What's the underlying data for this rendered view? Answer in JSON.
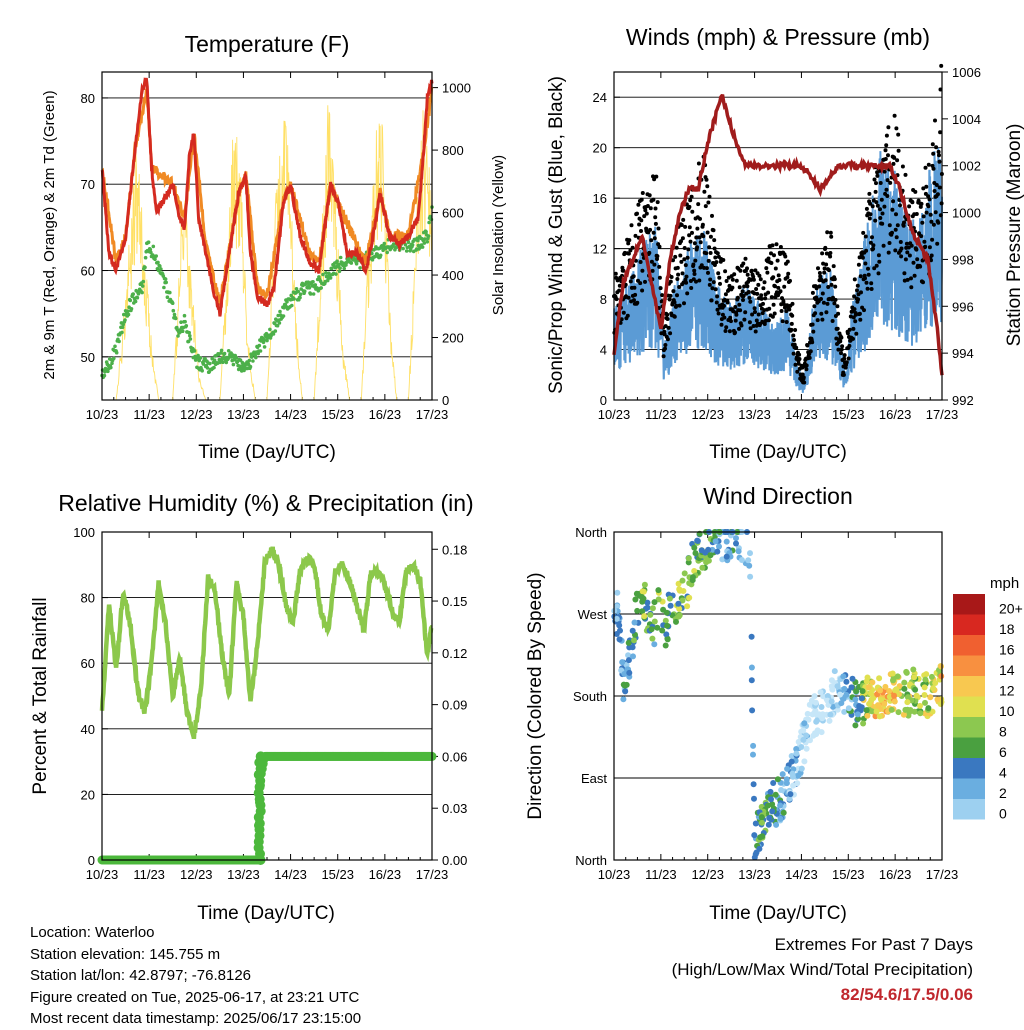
{
  "panels": {
    "temperature": {
      "title": "Temperature (F)",
      "ylabel_left": "2m & 9m T (Red, Orange) & 2m Td (Green)",
      "ylabel_right": "Solar Insolation (Yellow)",
      "xlabel": "Time (Day/UTC)"
    },
    "winds": {
      "title": "Winds (mph) & Pressure (mb)",
      "ylabel_left": "Sonic/Prop Wind & Gust (Blue, Black)",
      "ylabel_right": "Station Pressure (Maroon)",
      "xlabel": "Time (Day/UTC)"
    },
    "humidity": {
      "title": "Relative Humidity (%) & Precipitation (in)",
      "ylabel_left": "Percent & Total Rainfall",
      "xlabel": "Time (Day/UTC)"
    },
    "direction": {
      "title": "Wind Direction",
      "ylabel_left": "Direction (Colored By Speed)",
      "xlabel": "Time (Day/UTC)",
      "legend_title": "mph"
    }
  },
  "info": {
    "location": "Location: Waterloo",
    "elevation": "Station elevation: 145.755 m",
    "latlon": "Station lat/lon: 42.8797; -76.8126",
    "created": "Figure created on Tue, 2025-06-17, at 23:21 UTC",
    "timestamp": "Most recent data timestamp: 2025/06/17 23:15:00"
  },
  "extremes": {
    "line1": "Extremes For Past 7 Days",
    "line2": "(High/Low/Max Wind/Total Precipitation)",
    "values": "82/54.6/17.5/0.06"
  },
  "colors": {
    "temp_2m": "#d42a20",
    "temp_9m": "#f08a24",
    "dewpoint": "#4cb04a",
    "solar": "#ffe066",
    "wind": "#5b9bd5",
    "gust": "#000000",
    "pressure": "#a01c1c",
    "rh": "#8cc84b",
    "precip": "#4cb83c",
    "speed_scale": [
      "#c6e6f8",
      "#9dd0f0",
      "#6aaee0",
      "#3a78c0",
      "#4aa040",
      "#8cc850",
      "#e0e050",
      "#f8c850",
      "#f89040",
      "#f06030",
      "#d82820",
      "#a81818"
    ]
  },
  "chart_data": [
    {
      "type": "line",
      "title": "Temperature (F)",
      "xlabel": "Time (Day/UTC)",
      "ylabel": "2m & 9m T (Red, Orange) & 2m Td (Green)",
      "y2label": "Solar Insolation (Yellow)",
      "x_ticks": [
        "10/23",
        "11/23",
        "12/23",
        "13/23",
        "14/23",
        "15/23",
        "16/23",
        "17/23"
      ],
      "xlim": [
        0,
        7
      ],
      "ylim": [
        45,
        83
      ],
      "y_ticks": [
        50,
        60,
        70,
        80
      ],
      "y2lim": [
        0,
        1050
      ],
      "y2_ticks": [
        0,
        200,
        400,
        600,
        800,
        1000
      ],
      "grid": true,
      "series": [
        {
          "name": "2m T",
          "axis": "left",
          "x": [
            0,
            0.15,
            0.3,
            0.5,
            0.7,
            0.85,
            0.95,
            1.05,
            1.15,
            1.3,
            1.5,
            1.65,
            1.75,
            1.85,
            1.95,
            2.05,
            2.2,
            2.35,
            2.5,
            2.7,
            2.9,
            3.05,
            3.15,
            3.3,
            3.5,
            3.65,
            3.75,
            3.85,
            4.0,
            4.2,
            4.4,
            4.6,
            4.75,
            4.85,
            5.0,
            5.2,
            5.4,
            5.6,
            5.75,
            5.9,
            6.1,
            6.3,
            6.5,
            6.7,
            6.8,
            6.9,
            7.0
          ],
          "y": [
            72,
            62,
            60,
            64,
            74,
            81,
            82,
            72,
            67,
            68,
            70,
            66,
            65,
            73,
            76,
            66,
            62,
            58,
            55,
            62,
            69,
            71,
            62,
            57,
            56,
            58,
            63,
            68,
            70,
            64,
            61,
            60,
            66,
            70,
            68,
            62,
            62,
            60,
            64,
            69,
            64,
            63,
            64,
            66,
            72,
            80,
            82
          ]
        },
        {
          "name": "9m T",
          "axis": "left",
          "x": [
            0,
            0.3,
            0.5,
            0.7,
            0.95,
            1.05,
            1.5,
            1.75,
            1.95,
            2.2,
            2.5,
            2.9,
            3.05,
            3.3,
            3.5,
            3.85,
            4.0,
            4.4,
            4.6,
            4.85,
            5.0,
            5.4,
            5.6,
            5.9,
            6.1,
            6.5,
            6.8,
            7.0
          ],
          "y": [
            72,
            61,
            64,
            74,
            81,
            72,
            70,
            66,
            76,
            63,
            56,
            69,
            71,
            58,
            57,
            68,
            70,
            62,
            61,
            70,
            68,
            63,
            61,
            69,
            64,
            64,
            73,
            81
          ]
        },
        {
          "name": "2m Td",
          "axis": "left",
          "x": [
            0,
            0.15,
            0.3,
            0.5,
            0.7,
            0.85,
            0.95,
            1.1,
            1.3,
            1.5,
            1.6,
            1.75,
            1.85,
            1.95,
            2.1,
            2.3,
            2.5,
            2.75,
            2.9,
            3.1,
            3.3,
            3.5,
            3.7,
            3.9,
            4.1,
            4.3,
            4.5,
            4.7,
            4.9,
            5.1,
            5.3,
            5.5,
            5.7,
            5.9,
            6.1,
            6.3,
            6.5,
            6.7,
            6.9,
            7.0
          ],
          "y": [
            48,
            49,
            51,
            55,
            57,
            58,
            63,
            62,
            59,
            56,
            53,
            54,
            52,
            50,
            49,
            49,
            50,
            50,
            49,
            49,
            51,
            52,
            54,
            56,
            57,
            58,
            58,
            59,
            60,
            61,
            61,
            61,
            62,
            62,
            63,
            63,
            63,
            63,
            64,
            67
          ]
        },
        {
          "name": "Solar Insolation",
          "axis": "right",
          "x": [
            0.3,
            0.5,
            0.6,
            0.75,
            0.9,
            1.05,
            1.2,
            1.5,
            1.6,
            1.7,
            1.9,
            2.05,
            2.2,
            2.5,
            2.65,
            2.8,
            2.95,
            3.1,
            3.25,
            3.5,
            3.6,
            3.75,
            3.95,
            4.1,
            4.25,
            4.5,
            4.65,
            4.8,
            4.95,
            5.1,
            5.25,
            5.5,
            5.65,
            5.8,
            5.95,
            6.1,
            6.25,
            6.5,
            6.65,
            6.8,
            6.95
          ],
          "y": [
            0,
            350,
            600,
            850,
            500,
            200,
            0,
            0,
            300,
            800,
            400,
            100,
            0,
            0,
            450,
            950,
            700,
            200,
            0,
            0,
            400,
            850,
            950,
            300,
            0,
            0,
            500,
            1000,
            700,
            200,
            0,
            0,
            500,
            900,
            950,
            300,
            0,
            0,
            550,
            950,
            800
          ]
        }
      ]
    },
    {
      "type": "scatter",
      "title": "Winds (mph) & Pressure (mb)",
      "xlabel": "Time (Day/UTC)",
      "ylabel": "Sonic/Prop Wind & Gust (Blue, Black)",
      "y2label": "Station Pressure (Maroon)",
      "x_ticks": [
        "10/23",
        "11/23",
        "12/23",
        "13/23",
        "14/23",
        "15/23",
        "16/23",
        "17/23"
      ],
      "xlim": [
        0,
        7
      ],
      "ylim": [
        0,
        26
      ],
      "y_ticks": [
        0,
        4,
        8,
        12,
        16,
        20,
        24
      ],
      "y2lim": [
        992,
        1006
      ],
      "y2_ticks": [
        992,
        994,
        996,
        998,
        1000,
        1002,
        1004,
        1006
      ],
      "grid": true,
      "series": [
        {
          "name": "Wind",
          "axis": "left",
          "x": [
            0,
            0.3,
            0.6,
            0.9,
            1.05,
            1.3,
            1.6,
            1.9,
            2.2,
            2.5,
            2.8,
            3.1,
            3.4,
            3.7,
            3.9,
            4.05,
            4.3,
            4.6,
            4.9,
            5.1,
            5.4,
            5.7,
            6.0,
            6.3,
            6.6,
            6.9,
            7.0
          ],
          "y": [
            5,
            6,
            8,
            9,
            3,
            6,
            8,
            9,
            6,
            5,
            6,
            5,
            4,
            5,
            2,
            1,
            6,
            7,
            2,
            5,
            9,
            13,
            12,
            9,
            10,
            14,
            12
          ]
        },
        {
          "name": "Gust",
          "axis": "left",
          "x": [
            0,
            0.3,
            0.6,
            0.9,
            1.05,
            1.3,
            1.6,
            1.9,
            2.2,
            2.5,
            2.8,
            3.1,
            3.4,
            3.7,
            3.9,
            4.05,
            4.3,
            4.6,
            4.9,
            5.1,
            5.4,
            5.7,
            6.0,
            6.3,
            6.6,
            6.9,
            7.0
          ],
          "y": [
            9,
            12,
            15,
            17,
            6,
            12,
            15,
            18,
            11,
            9,
            11,
            9,
            12,
            11,
            4,
            2,
            10,
            13,
            3,
            8,
            14,
            19,
            21,
            15,
            16,
            21,
            25
          ]
        },
        {
          "name": "Station Pressure",
          "axis": "right",
          "x": [
            0,
            0.2,
            0.4,
            0.6,
            0.8,
            1.0,
            1.2,
            1.4,
            1.6,
            1.8,
            2.0,
            2.3,
            2.6,
            2.8,
            3.0,
            3.3,
            3.6,
            4.0,
            4.4,
            4.8,
            5.0,
            5.2,
            5.5,
            5.9,
            6.1,
            6.4,
            6.7,
            6.9,
            7.0
          ],
          "y": [
            994,
            997,
            998,
            999,
            997,
            995,
            998,
            1000,
            1001,
            1001,
            1003,
            1005,
            1003,
            1002,
            1002,
            1002,
            1002,
            1002,
            1001,
            1002,
            1002,
            1002,
            1002,
            1002,
            1001,
            999,
            998,
            995,
            993
          ]
        }
      ]
    },
    {
      "type": "line",
      "title": "Relative Humidity (%) & Precipitation (in)",
      "xlabel": "Time (Day/UTC)",
      "ylabel": "Percent & Total Rainfall",
      "x_ticks": [
        "10/23",
        "11/23",
        "12/23",
        "13/23",
        "14/23",
        "15/23",
        "16/23",
        "17/23"
      ],
      "xlim": [
        0,
        7
      ],
      "ylim": [
        0,
        100
      ],
      "y_ticks": [
        0,
        20,
        40,
        60,
        80,
        100
      ],
      "y2lim": [
        0,
        0.19
      ],
      "y2_ticks": [
        "0.00",
        "0.03",
        "0.06",
        "0.09",
        "0.12",
        "0.15",
        "0.18"
      ],
      "grid": true,
      "series": [
        {
          "name": "RH",
          "axis": "left",
          "x": [
            0,
            0.15,
            0.3,
            0.45,
            0.6,
            0.75,
            0.9,
            1.05,
            1.2,
            1.35,
            1.5,
            1.65,
            1.8,
            1.95,
            2.1,
            2.25,
            2.4,
            2.55,
            2.7,
            2.85,
            3.0,
            3.15,
            3.3,
            3.45,
            3.6,
            3.75,
            3.9,
            4.05,
            4.2,
            4.35,
            4.5,
            4.65,
            4.8,
            4.95,
            5.1,
            5.25,
            5.4,
            5.55,
            5.7,
            5.85,
            6.0,
            6.15,
            6.3,
            6.45,
            6.6,
            6.75,
            6.9,
            7.0
          ],
          "y": [
            45,
            78,
            58,
            82,
            72,
            52,
            45,
            60,
            84,
            72,
            50,
            62,
            45,
            38,
            52,
            86,
            82,
            62,
            50,
            85,
            74,
            48,
            66,
            90,
            95,
            90,
            78,
            72,
            88,
            92,
            90,
            75,
            70,
            88,
            90,
            85,
            78,
            70,
            87,
            88,
            84,
            76,
            72,
            88,
            90,
            85,
            62,
            72
          ]
        },
        {
          "name": "Precipitation",
          "axis": "right",
          "x": [
            0,
            3.3,
            3.32,
            3.35,
            3.38,
            3.45,
            7.0
          ],
          "y": [
            0,
            0,
            0.02,
            0.04,
            0.05,
            0.06,
            0.06
          ]
        }
      ]
    },
    {
      "type": "scatter",
      "title": "Wind Direction",
      "xlabel": "Time (Day/UTC)",
      "ylabel": "Direction (Colored By Speed)",
      "x_ticks": [
        "10/23",
        "11/23",
        "12/23",
        "13/23",
        "14/23",
        "15/23",
        "16/23",
        "17/23"
      ],
      "xlim": [
        0,
        7
      ],
      "y_ticks": [
        "North",
        "East",
        "South",
        "West",
        "North"
      ],
      "ylim": [
        0,
        360
      ],
      "grid": true,
      "legend": {
        "title": "mph",
        "labels": [
          "20+",
          "18",
          "16",
          "14",
          "12",
          "10",
          "8",
          "6",
          "4",
          "2",
          "0"
        ],
        "position": "right"
      },
      "series": [
        {
          "name": "Direction",
          "x": [
            0.1,
            0.2,
            0.3,
            0.5,
            0.6,
            0.8,
            1.0,
            1.1,
            1.3,
            1.5,
            1.7,
            1.9,
            2.1,
            2.3,
            2.6,
            2.9,
            3.0,
            3.2,
            3.4,
            3.6,
            3.8,
            4.0,
            4.2,
            4.5,
            4.8,
            5.0,
            5.2,
            5.5,
            5.8,
            6.1,
            6.4,
            6.7,
            6.9
          ],
          "y": [
            270,
            200,
            210,
            280,
            290,
            250,
            280,
            260,
            280,
            290,
            330,
            340,
            360,
            355,
            350,
            340,
            20,
            40,
            60,
            70,
            90,
            120,
            150,
            170,
            190,
            180,
            170,
            180,
            180,
            180,
            185,
            180,
            190
          ],
          "speed": [
            4,
            4,
            5,
            8,
            10,
            6,
            9,
            8,
            9,
            10,
            9,
            9,
            6,
            4,
            5,
            2,
            6,
            8,
            6,
            5,
            3,
            4,
            3,
            2,
            4,
            8,
            9,
            12,
            14,
            12,
            10,
            11,
            13
          ]
        }
      ]
    }
  ]
}
